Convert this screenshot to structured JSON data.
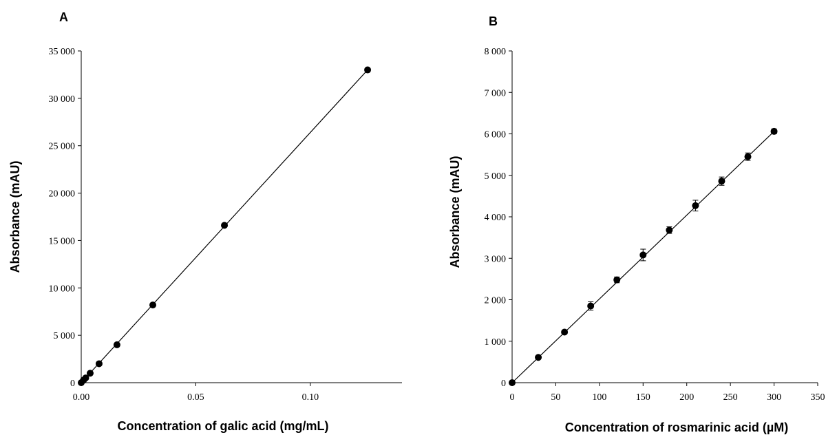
{
  "chart_data": [
    {
      "panel": "A",
      "type": "scatter",
      "xlabel": "Concentration of galic acid (mg/mL)",
      "ylabel": "Absorbance (mAU)",
      "xlim": [
        0,
        0.14
      ],
      "ylim": [
        0,
        35000
      ],
      "xticks": [
        0,
        0.05,
        0.1
      ],
      "xtick_labels": [
        "0.00",
        "0.05",
        "0.10"
      ],
      "yticks": [
        0,
        5000,
        10000,
        15000,
        20000,
        25000,
        30000,
        35000
      ],
      "ytick_labels": [
        "0",
        "5 000",
        "10 000",
        "15 000",
        "20 000",
        "25 000",
        "30 000",
        "35 000"
      ],
      "series": [
        {
          "x": [
            0,
            0.00098,
            0.00195,
            0.0039,
            0.0078,
            0.0156,
            0.03125,
            0.0625,
            0.125
          ],
          "y": [
            0,
            260,
            500,
            1000,
            2000,
            4000,
            8200,
            16600,
            33000
          ],
          "yerr": [
            0,
            0,
            0,
            0,
            0,
            0,
            0,
            0,
            0
          ]
        }
      ],
      "fit_line": {
        "x": [
          0,
          0.125
        ],
        "y": [
          0,
          33000
        ]
      },
      "grid": false
    },
    {
      "panel": "B",
      "type": "scatter",
      "xlabel": "Concentration of rosmarinic acid (µM)",
      "ylabel": "Absorbance (mAU)",
      "xlim": [
        0,
        350
      ],
      "ylim": [
        0,
        8000
      ],
      "xticks": [
        0,
        50,
        100,
        150,
        200,
        250,
        300,
        350
      ],
      "xtick_labels": [
        "0",
        "50",
        "100",
        "150",
        "200",
        "250",
        "300",
        "350"
      ],
      "yticks": [
        0,
        1000,
        2000,
        3000,
        4000,
        5000,
        6000,
        7000,
        8000
      ],
      "ytick_labels": [
        "0",
        "1 000",
        "2 000",
        "3 000",
        "4 000",
        "5 000",
        "6 000",
        "7 000",
        "8 000"
      ],
      "series": [
        {
          "x": [
            0,
            30,
            60,
            90,
            120,
            150,
            180,
            210,
            240,
            270,
            300
          ],
          "y": [
            0,
            610,
            1220,
            1850,
            2480,
            3080,
            3680,
            4270,
            4860,
            5450,
            6060
          ],
          "yerr": [
            0,
            30,
            40,
            100,
            70,
            140,
            80,
            130,
            100,
            90,
            60
          ]
        }
      ],
      "fit_line": {
        "x": [
          0,
          300
        ],
        "y": [
          0,
          6060
        ]
      },
      "grid": false
    }
  ]
}
